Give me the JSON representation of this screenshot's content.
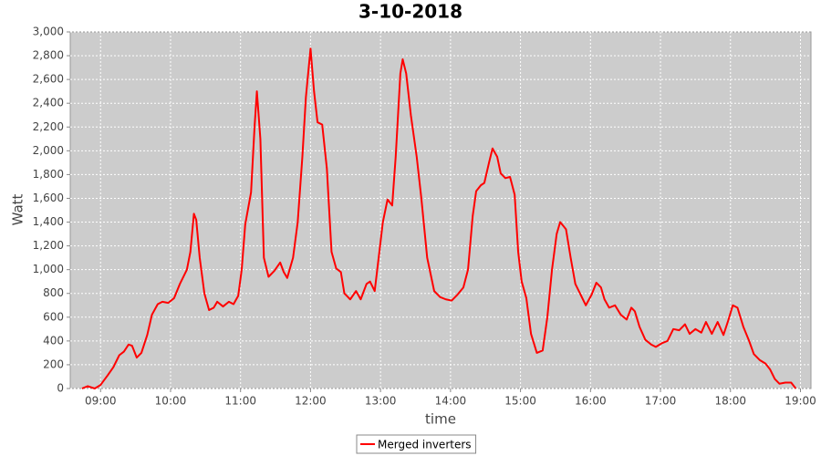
{
  "chart_data": {
    "type": "line",
    "title": "3-10-2018",
    "x_label": "time",
    "y_label": "Watt",
    "grid": true,
    "legend": "bottom",
    "xlim": [
      "08:34",
      "19:09"
    ],
    "xticks": [
      "09:00",
      "10:00",
      "11:00",
      "12:00",
      "13:00",
      "14:00",
      "15:00",
      "16:00",
      "17:00",
      "18:00",
      "19:00"
    ],
    "ylim": [
      0,
      3000
    ],
    "yticks": [
      0,
      200,
      400,
      600,
      800,
      {
        "value": 1000,
        "label": "1,000"
      },
      {
        "value": 1200,
        "label": "1,200"
      },
      {
        "value": 1400,
        "label": "1,400"
      },
      {
        "value": 1600,
        "label": "1,600"
      },
      {
        "value": 1800,
        "label": "1,800"
      },
      {
        "value": 2000,
        "label": "2,000"
      },
      {
        "value": 2200,
        "label": "2,200"
      },
      {
        "value": 2400,
        "label": "2,400"
      },
      {
        "value": 2600,
        "label": "2,600"
      },
      {
        "value": 2800,
        "label": "2,800"
      },
      {
        "value": 3000,
        "label": "3,000"
      }
    ],
    "x": [
      "08:44",
      "08:49",
      "08:55",
      "09:00",
      "09:06",
      "09:11",
      "09:16",
      "09:20",
      "09:24",
      "09:27",
      "09:31",
      "09:35",
      "09:40",
      "09:44",
      "09:49",
      "09:53",
      "09:58",
      "10:03",
      "10:08",
      "10:14",
      "10:17",
      "10:20",
      "10:22",
      "10:25",
      "10:29",
      "10:33",
      "10:37",
      "10:40",
      "10:45",
      "10:50",
      "10:54",
      "10:58",
      "11:01",
      "11:04",
      "11:09",
      "11:12",
      "11:14",
      "11:17",
      "11:20",
      "11:24",
      "11:29",
      "11:34",
      "11:37",
      "11:40",
      "11:45",
      "11:49",
      "11:53",
      "11:56",
      "12:00",
      "12:03",
      "12:06",
      "12:10",
      "12:14",
      "12:18",
      "12:22",
      "12:26",
      "12:29",
      "12:34",
      "12:39",
      "12:43",
      "12:48",
      "12:51",
      "12:55",
      "12:59",
      "13:02",
      "13:06",
      "13:10",
      "13:13",
      "13:17",
      "13:19",
      "13:22",
      "13:26",
      "13:31",
      "13:35",
      "13:40",
      "13:46",
      "13:51",
      "13:56",
      "14:01",
      "14:06",
      "14:11",
      "14:15",
      "14:19",
      "14:22",
      "14:26",
      "14:29",
      "14:33",
      "14:36",
      "14:40",
      "14:43",
      "14:47",
      "14:51",
      "14:55",
      "14:58",
      "15:01",
      "15:05",
      "15:09",
      "15:14",
      "15:19",
      "15:23",
      "15:27",
      "15:31",
      "15:34",
      "15:39",
      "15:43",
      "15:47",
      "15:51",
      "15:56",
      "16:01",
      "16:05",
      "16:09",
      "16:12",
      "16:16",
      "16:21",
      "16:26",
      "16:31",
      "16:35",
      "16:38",
      "16:42",
      "16:47",
      "16:52",
      "16:56",
      "17:01",
      "17:06",
      "17:11",
      "17:16",
      "17:21",
      "17:25",
      "17:30",
      "17:35",
      "17:39",
      "17:44",
      "17:49",
      "17:54",
      "17:58",
      "18:02",
      "18:06",
      "18:11",
      "18:16",
      "18:20",
      "18:25",
      "18:30",
      "18:34",
      "18:38",
      "18:42",
      "18:47",
      "18:52",
      "18:56"
    ],
    "series": [
      {
        "name": "Merged inverters",
        "color": "#ff0000",
        "values": [
          0,
          20,
          0,
          30,
          110,
          180,
          280,
          310,
          370,
          360,
          260,
          300,
          450,
          620,
          710,
          730,
          720,
          760,
          880,
          1000,
          1150,
          1470,
          1420,
          1100,
          800,
          660,
          680,
          730,
          690,
          730,
          710,
          780,
          1000,
          1380,
          1650,
          2200,
          2500,
          2100,
          1100,
          940,
          990,
          1060,
          980,
          930,
          1100,
          1400,
          1950,
          2450,
          2860,
          2500,
          2240,
          2220,
          1850,
          1150,
          1010,
          980,
          800,
          750,
          820,
          750,
          880,
          900,
          820,
          1150,
          1400,
          1590,
          1540,
          1950,
          2650,
          2770,
          2650,
          2300,
          1950,
          1600,
          1100,
          820,
          770,
          750,
          740,
          790,
          850,
          1000,
          1450,
          1660,
          1710,
          1730,
          1900,
          2020,
          1950,
          1810,
          1770,
          1780,
          1630,
          1150,
          900,
          760,
          460,
          300,
          320,
          600,
          1000,
          1300,
          1400,
          1340,
          1100,
          880,
          800,
          700,
          790,
          890,
          850,
          750,
          680,
          700,
          620,
          580,
          680,
          650,
          520,
          410,
          370,
          350,
          380,
          400,
          500,
          490,
          540,
          460,
          500,
          470,
          560,
          460,
          560,
          450,
          570,
          700,
          680,
          520,
          400,
          290,
          240,
          210,
          160,
          80,
          40,
          50,
          50,
          0
        ]
      }
    ]
  }
}
